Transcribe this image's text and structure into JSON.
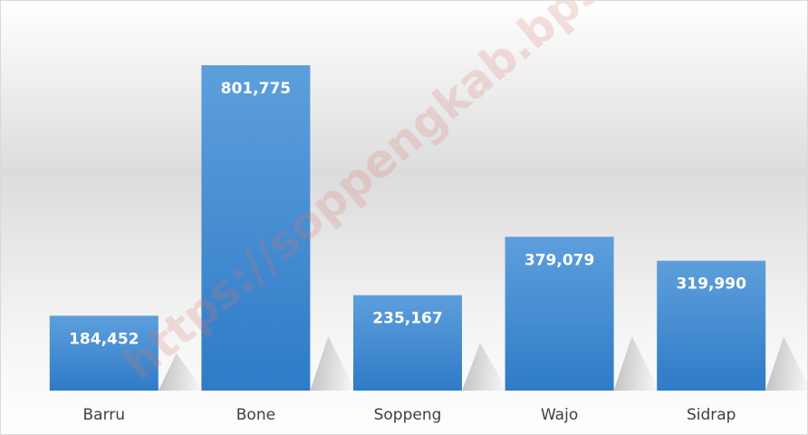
{
  "chart_data": {
    "type": "bar",
    "categories": [
      "Barru",
      "Bone",
      "Soppeng",
      "Wajo",
      "Sidrap"
    ],
    "values": [
      184452,
      801775,
      235167,
      379079,
      319990
    ],
    "value_labels": [
      "184,452",
      "801,775",
      "235,167",
      "379,079",
      "319,990"
    ],
    "color": "#4a8fd6",
    "watermark": "https://soppengkab.bps."
  }
}
